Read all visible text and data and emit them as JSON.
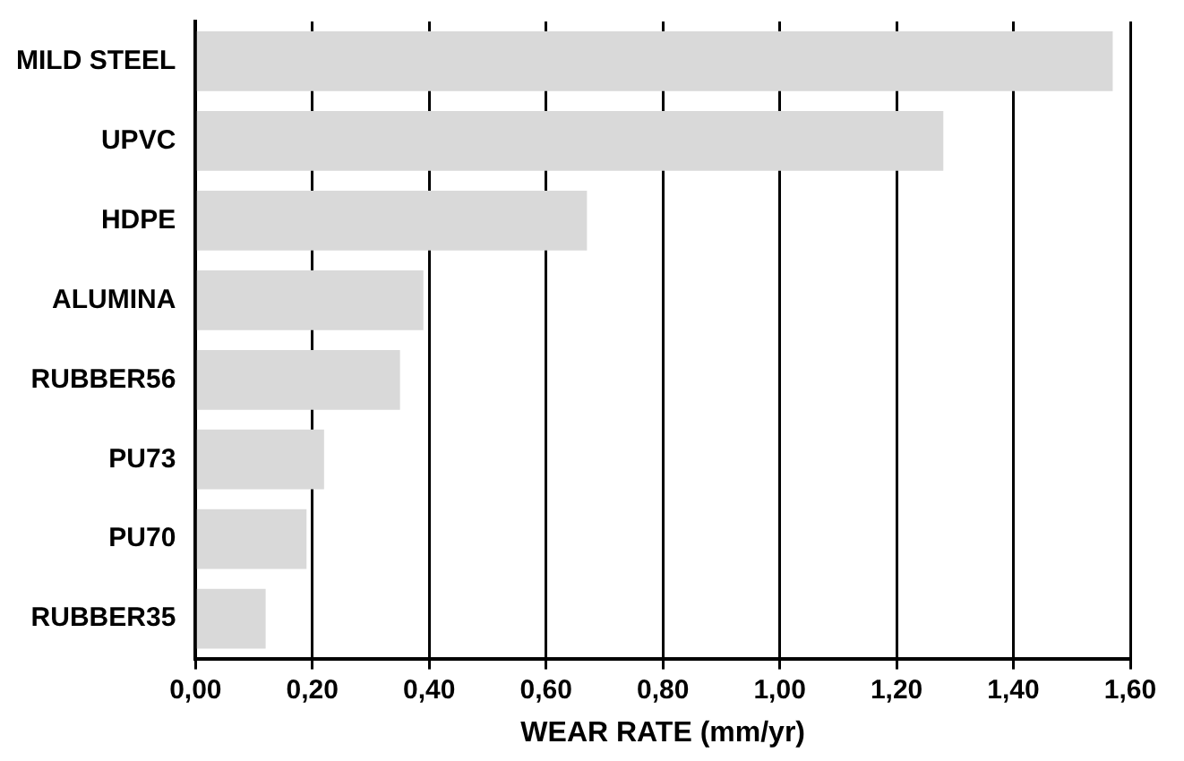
{
  "chart_data": {
    "type": "bar",
    "orientation": "horizontal",
    "xlabel": "WEAR RATE (mm/yr)",
    "categories": [
      "MILD STEEL",
      "UPVC",
      "HDPE",
      "ALUMINA",
      "RUBBER56",
      "PU73",
      "PU70",
      "RUBBER35"
    ],
    "values": [
      1.57,
      1.28,
      0.67,
      0.39,
      0.35,
      0.22,
      0.19,
      0.12
    ],
    "color": "#d9d9d9",
    "xlim": [
      0,
      1.6
    ],
    "xticks": [
      {
        "value": 0,
        "label": "0,00"
      },
      {
        "value": 0.2,
        "label": "0,20"
      },
      {
        "value": 0.4,
        "label": "0,40"
      },
      {
        "value": 0.6,
        "label": "0,60"
      },
      {
        "value": 0.8,
        "label": "0,80"
      },
      {
        "value": 1,
        "label": "1,00"
      },
      {
        "value": 1.2,
        "label": "1,20"
      },
      {
        "value": 1.4,
        "label": "1,40"
      },
      {
        "value": 1.6,
        "label": "1,60"
      }
    ],
    "grid": "x",
    "legend": false
  }
}
